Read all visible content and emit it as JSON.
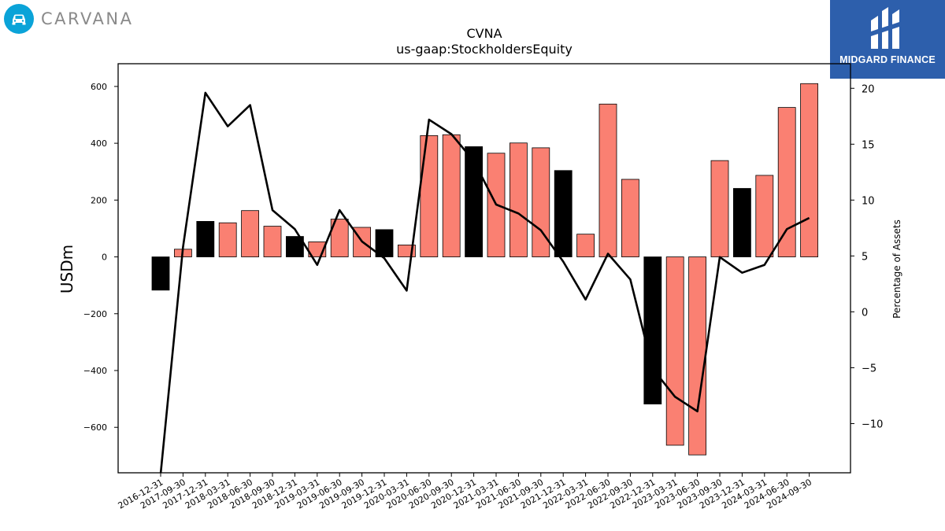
{
  "logos": {
    "left_brand_text": "CARVANA",
    "right_brand_text": "MIDGARD FINANCE",
    "right_brand_color": "#2d5fac",
    "left_brand_icon": "car-icon",
    "left_brand_color": "#0aa3d8"
  },
  "chart_data": {
    "type": "bar",
    "title": "CVNA",
    "subtitle": "us-gaap:StockholdersEquity",
    "ylabel": "USDm",
    "y2label": "Percentage of Assets",
    "ylim": [
      -760,
      680
    ],
    "y2lim": [
      -14.4,
      22.2
    ],
    "yticks": [
      -600,
      -400,
      -200,
      0,
      200,
      400,
      600
    ],
    "y2ticks": [
      -10,
      -5,
      0,
      5,
      10,
      15,
      20
    ],
    "ytick_labels": [
      "−600",
      "−400",
      "−200",
      "0",
      "200",
      "400",
      "600"
    ],
    "y2tick_labels": [
      "−10",
      "−5",
      "0",
      "5",
      "10",
      "15",
      "20"
    ],
    "grid": false,
    "colors": {
      "annual": "#000000",
      "quarterly": "#fa8072",
      "line": "#000000"
    },
    "categories": [
      "2016-12-31",
      "2017-09-30",
      "2017-12-31",
      "2018-03-31",
      "2018-06-30",
      "2018-09-30",
      "2018-12-31",
      "2019-03-31",
      "2019-06-30",
      "2019-09-30",
      "2019-12-31",
      "2020-03-31",
      "2020-06-30",
      "2020-09-30",
      "2020-12-31",
      "2021-03-31",
      "2021-06-30",
      "2021-09-30",
      "2021-12-31",
      "2022-03-31",
      "2022-06-30",
      "2022-09-30",
      "2022-12-31",
      "2023-03-31",
      "2023-06-30",
      "2023-09-30",
      "2023-12-31",
      "2024-03-31",
      "2024-06-30",
      "2024-09-30"
    ],
    "series": [
      {
        "type": "bar",
        "values": [
          -117,
          27,
          125,
          120,
          163,
          108,
          72,
          53,
          133,
          104,
          96,
          42,
          427,
          430,
          388,
          365,
          401,
          384,
          304,
          80,
          538,
          273,
          -518,
          -663,
          -697,
          339,
          241,
          287,
          526,
          610
        ],
        "kinds": [
          "annual",
          "quarterly",
          "annual",
          "quarterly",
          "quarterly",
          "quarterly",
          "annual",
          "quarterly",
          "quarterly",
          "quarterly",
          "annual",
          "quarterly",
          "quarterly",
          "quarterly",
          "annual",
          "quarterly",
          "quarterly",
          "quarterly",
          "annual",
          "quarterly",
          "quarterly",
          "quarterly",
          "annual",
          "quarterly",
          "quarterly",
          "quarterly",
          "annual",
          "quarterly",
          "quarterly",
          "quarterly"
        ]
      },
      {
        "type": "line",
        "axis": "secondary",
        "values": [
          -14.5,
          5.8,
          19.6,
          16.6,
          18.5,
          9.1,
          7.4,
          4.2,
          9.1,
          6.3,
          4.8,
          1.9,
          17.2,
          15.9,
          13.5,
          9.6,
          8.8,
          7.3,
          4.5,
          1.1,
          5.2,
          2.9,
          -5.1,
          -7.6,
          -8.9,
          4.9,
          3.5,
          4.2,
          7.4,
          8.4
        ]
      }
    ]
  }
}
